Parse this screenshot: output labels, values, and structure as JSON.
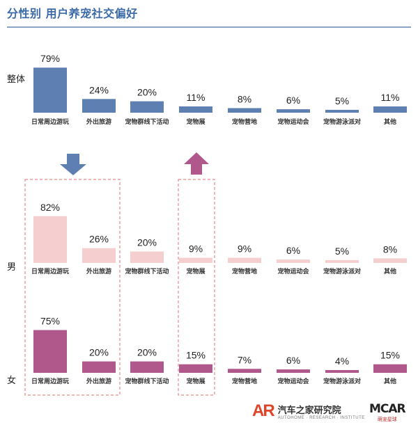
{
  "title": "分性别  用户养宠社交偏好",
  "colors": {
    "title": "#3c6aa8",
    "overall_bar": "#5d7fb1",
    "male_bar": "#f5cfcf",
    "female_bar": "#b0588c",
    "down_arrow": "#5d7fb1",
    "up_arrow": "#b0588c",
    "dashed_box": "#e88a8a"
  },
  "chart_data": {
    "type": "bar",
    "categories": [
      "日常周边游玩",
      "外出旅游",
      "宠物群线下活动",
      "宠物展",
      "宠物营地",
      "宠物运动会",
      "宠物游泳派对",
      "其他"
    ],
    "unit": "%",
    "series": [
      {
        "name": "整体",
        "values": [
          79,
          24,
          20,
          11,
          8,
          6,
          5,
          11
        ]
      },
      {
        "name": "男",
        "values": [
          82,
          26,
          20,
          9,
          9,
          6,
          5,
          8
        ]
      },
      {
        "name": "女",
        "values": [
          75,
          20,
          20,
          15,
          7,
          6,
          4,
          15
        ]
      }
    ],
    "annotations": [
      {
        "type": "down-arrow",
        "category": "日常周边游玩"
      },
      {
        "type": "up-arrow",
        "category": "宠物展"
      },
      {
        "type": "dashed-box",
        "categories": [
          "日常周边游玩",
          "外出旅游"
        ]
      },
      {
        "type": "dashed-box",
        "categories": [
          "宠物展"
        ]
      }
    ]
  },
  "footer": {
    "ar_logo_mark": "AR",
    "ar_logo_name": "汽车之家研究院",
    "ar_logo_sub": "AUTOHOME · RESEARCH · INSTITUTE",
    "mc_logo_mark": "MCAR",
    "mc_logo_sub": "萌宠星球"
  }
}
